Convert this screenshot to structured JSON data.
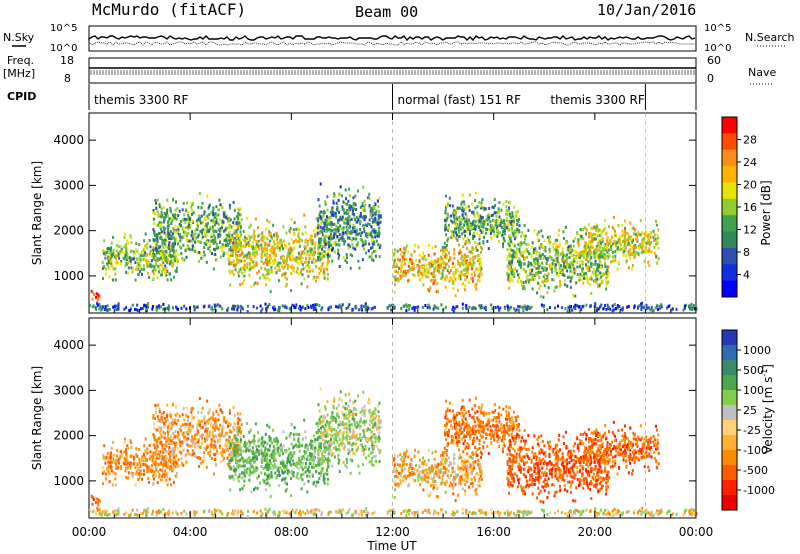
{
  "header": {
    "station": "McMurdo (fitACF)",
    "beam": "Beam 00",
    "date": "10/Jan/2016"
  },
  "params": {
    "nsky_label": "N.Sky",
    "nsearch_label": "N.Search",
    "freq_label": "Freq.",
    "freq_unit": "[MHz]",
    "nave_label": "Nave",
    "cpid_label": "CPID",
    "noise_ticks": [
      "10^5",
      "10^0"
    ],
    "noise_ticks_right": [
      "10^5",
      "10^0"
    ],
    "freq_ticks": [
      "18",
      "8"
    ],
    "nave_ticks": [
      "60",
      "0"
    ]
  },
  "cpid_segments": [
    {
      "label": "themis 3300 RF",
      "start_h": 0.0,
      "end_h": 12.0
    },
    {
      "label": "normal (fast) 151 RF",
      "start_h": 12.0,
      "end_h": 22.0
    },
    {
      "label": "themis 3300 RF",
      "start_h": 22.0,
      "end_h": 24.0
    }
  ],
  "x_axis": {
    "label": "Time UT",
    "ticks": [
      "00:00",
      "04:00",
      "08:00",
      "12:00",
      "16:00",
      "20:00",
      "00:00"
    ],
    "range_hours": [
      0,
      24
    ]
  },
  "y_axis": {
    "label": "Slant Range [km]",
    "ticks": [
      "1000",
      "2000",
      "3000",
      "4000"
    ],
    "range_km": [
      180,
      4600
    ]
  },
  "colorbars": {
    "power": {
      "label": "Power [dB]",
      "ticks": [
        "28",
        "24",
        "20",
        "16",
        "12",
        "8",
        "4"
      ],
      "colors": [
        "#ff0000",
        "#ff4d00",
        "#ff8c1a",
        "#ffb300",
        "#e6e600",
        "#8fce2e",
        "#3fa34d",
        "#2e8b57",
        "#2f4fb0",
        "#1030e0",
        "#0000ff"
      ]
    },
    "velocity": {
      "label": "Velocity [m s^-1]",
      "ticks": [
        "1000",
        "500",
        "100",
        "25",
        "-25",
        "-100",
        "-500",
        "-1000"
      ],
      "colors": [
        "#2438b8",
        "#2e6db0",
        "#3a8a6a",
        "#4aa84a",
        "#7ed04a",
        "#bfbfbf",
        "#ffd27a",
        "#ffb030",
        "#ff8c00",
        "#ff5a00",
        "#ff2000",
        "#ee0000"
      ]
    }
  },
  "chart_data": {
    "type": "heatmap",
    "title": "McMurdo (fitACF) Beam 00 10/Jan/2016",
    "xlabel": "Time UT",
    "ylabel": "Slant Range [km]",
    "xlim": [
      0,
      24
    ],
    "ylim": [
      180,
      4600
    ],
    "panels": [
      "Power [dB]",
      "Velocity [m s^-1]"
    ],
    "scatter_regions": [
      {
        "t_start": 0.0,
        "t_end": 0.4,
        "r_center": 560,
        "r_halfwidth": 120,
        "power": 26,
        "velocity": -300
      },
      {
        "t_start": 0.5,
        "t_end": 3.5,
        "r_center": 1400,
        "r_halfwidth": 500,
        "power": 14,
        "velocity": -200
      },
      {
        "t_start": 2.5,
        "t_end": 6.0,
        "r_center": 2000,
        "r_halfwidth": 700,
        "power": 12,
        "velocity": -150
      },
      {
        "t_start": 5.5,
        "t_end": 9.5,
        "r_center": 1500,
        "r_halfwidth": 700,
        "power": 18,
        "velocity": 300
      },
      {
        "t_start": 9.0,
        "t_end": 11.5,
        "r_center": 2100,
        "r_halfwidth": 800,
        "power": 10,
        "velocity": 150
      },
      {
        "t_start": 12.0,
        "t_end": 15.5,
        "r_center": 1200,
        "r_halfwidth": 500,
        "power": 20,
        "velocity": -100
      },
      {
        "t_start": 14.0,
        "t_end": 17.0,
        "r_center": 2200,
        "r_halfwidth": 600,
        "power": 12,
        "velocity": -300
      },
      {
        "t_start": 16.5,
        "t_end": 20.5,
        "r_center": 1300,
        "r_halfwidth": 700,
        "power": 14,
        "velocity": -400
      },
      {
        "t_start": 19.5,
        "t_end": 22.5,
        "r_center": 1700,
        "r_halfwidth": 500,
        "power": 18,
        "velocity": -350
      },
      {
        "t_start": 0.0,
        "t_end": 24.0,
        "r_center": 300,
        "r_halfwidth": 80,
        "power": 6,
        "velocity": 0
      }
    ]
  }
}
